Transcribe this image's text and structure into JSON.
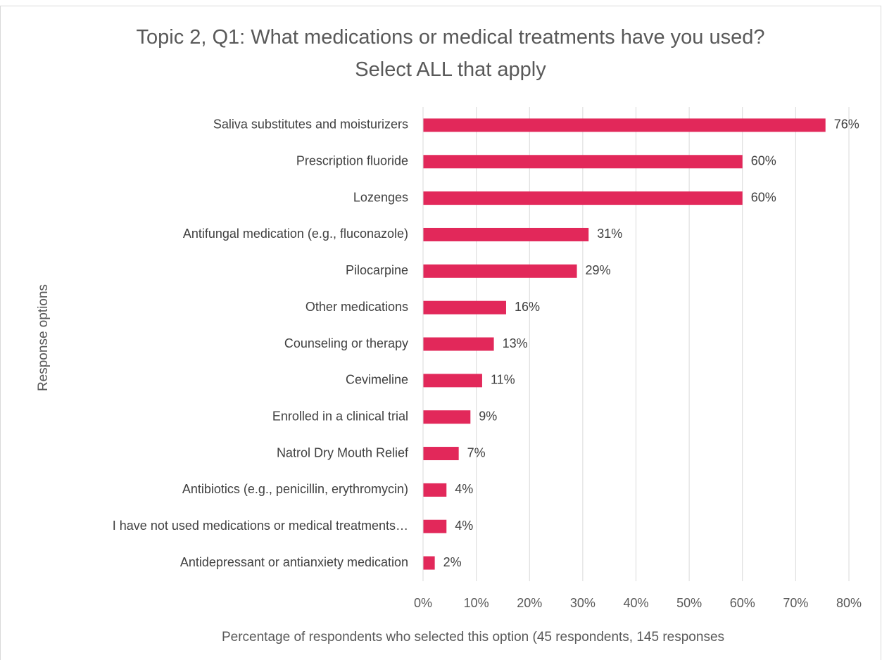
{
  "chart_data": {
    "type": "bar",
    "orientation": "horizontal",
    "title": "Topic 2, Q1: What medications or medical treatments have you used? Select ALL that apply",
    "x_label": "Percentage of respondents who selected this option (45 respondents, 145 responses",
    "y_label": "Response options",
    "categories": [
      "Saliva substitutes and moisturizers",
      "Prescription fluoride",
      "Lozenges",
      "Antifungal medication (e.g., fluconazole)",
      "Pilocarpine",
      "Other medications",
      "Counseling or therapy",
      "Cevimeline",
      "Enrolled in a clinical trial",
      "Natrol Dry Mouth Relief",
      "Antibiotics (e.g., penicillin, erythromycin)",
      "I have not used medications or medical treatments…",
      "Antidepressant or antianxiety medication"
    ],
    "values": [
      75.6,
      60,
      60,
      31.1,
      28.9,
      15.6,
      13.3,
      11.1,
      8.9,
      6.7,
      4.4,
      4.4,
      2.2
    ],
    "value_labels": [
      "76%",
      "60%",
      "60%",
      "31%",
      "29%",
      "16%",
      "13%",
      "11%",
      "9%",
      "7%",
      "4%",
      "4%",
      "2%"
    ],
    "color": "#e2285a",
    "xlim": [
      0,
      80
    ],
    "xticks": [
      {
        "value": 0,
        "label": "0%"
      },
      {
        "value": 10,
        "label": "10%"
      },
      {
        "value": 20,
        "label": "20%"
      },
      {
        "value": 30,
        "label": "30%"
      },
      {
        "value": 40,
        "label": "40%"
      },
      {
        "value": 50,
        "label": "50%"
      },
      {
        "value": 60,
        "label": "60%"
      },
      {
        "value": 70,
        "label": "70%"
      },
      {
        "value": 80,
        "label": "80%"
      }
    ],
    "grid": true
  }
}
